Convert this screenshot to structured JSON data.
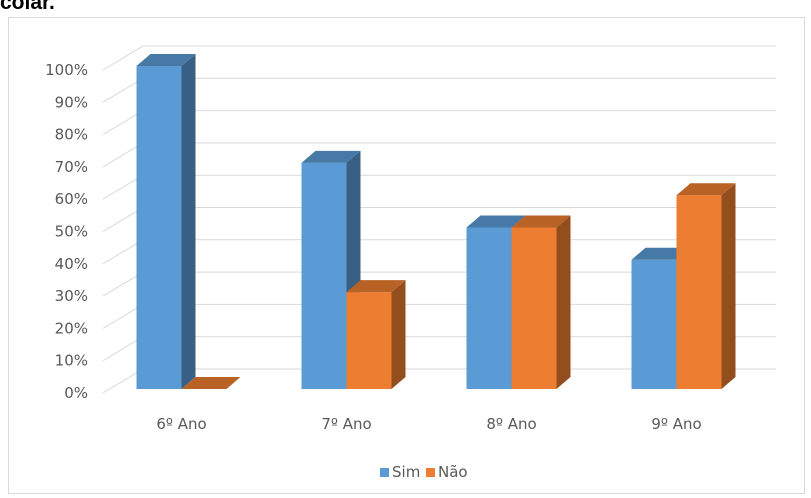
{
  "heading_fragment": "colar.",
  "chart_data": {
    "type": "bar",
    "subtype": "3d-clustered-column",
    "categories": [
      "6º Ano",
      "7º Ano",
      "8º Ano",
      "9º Ano"
    ],
    "series": [
      {
        "name": "Sim",
        "values": [
          100,
          70,
          50,
          40
        ],
        "color": "#5b9bd5"
      },
      {
        "name": "Não",
        "values": [
          0,
          30,
          50,
          60
        ],
        "color": "#ed7d31"
      }
    ],
    "ylim": [
      0,
      100
    ],
    "y_ticks": [
      "0%",
      "10%",
      "20%",
      "30%",
      "40%",
      "50%",
      "60%",
      "70%",
      "80%",
      "90%",
      "100%"
    ],
    "grid": true,
    "legend_position": "bottom"
  }
}
